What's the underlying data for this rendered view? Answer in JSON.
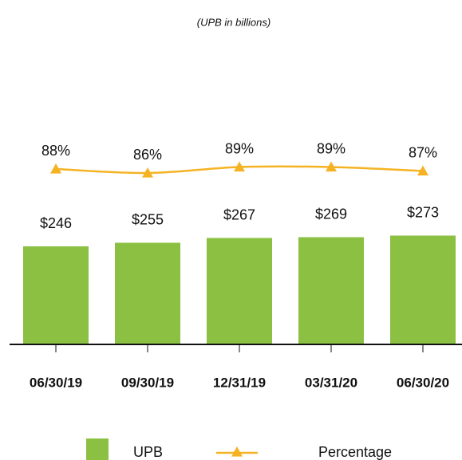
{
  "chart_data": {
    "type": "bar",
    "subtitle": "(UPB in billions)",
    "categories": [
      "06/30/19",
      "09/30/19",
      "12/31/19",
      "03/31/20",
      "06/30/20"
    ],
    "series": [
      {
        "name": "UPB",
        "type": "bar",
        "color": "#8bc043",
        "values": [
          246,
          255,
          267,
          269,
          273
        ],
        "value_labels": [
          "$246",
          "$255",
          "$267",
          "$269",
          "$273"
        ]
      },
      {
        "name": "Percentage",
        "type": "line",
        "axis": "y2",
        "color": "#f5b324",
        "values": [
          88,
          86,
          89,
          89,
          87
        ],
        "value_labels": [
          "88%",
          "86%",
          "89%",
          "89%",
          "87%"
        ]
      }
    ],
    "ylim": [
      0,
      500
    ],
    "y2lim": [
      0,
      100
    ]
  }
}
